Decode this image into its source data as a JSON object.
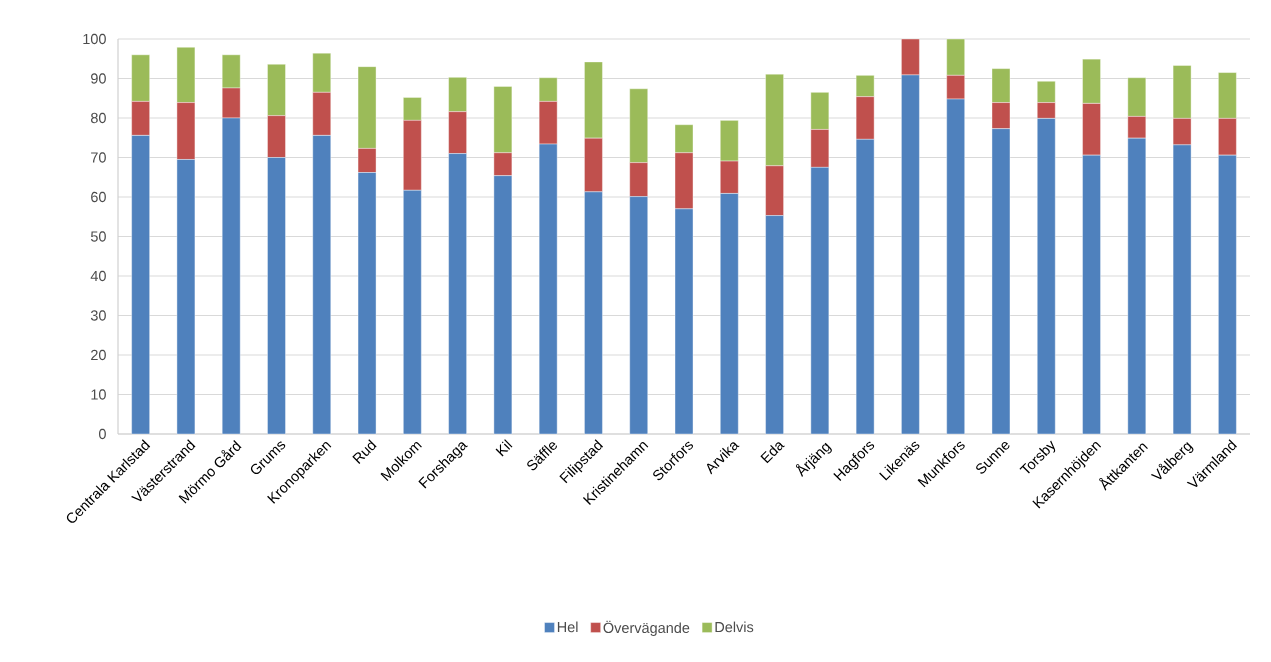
{
  "chart_data": {
    "type": "bar",
    "stacked": true,
    "grid": "y",
    "legend": "bottom",
    "categories": [
      "Centrala Karlstad",
      "Västerstrand",
      "Mörmo Gård",
      "Grums",
      "Kronoparken",
      "Rud",
      "Molkom",
      "Forshaga",
      "Kil",
      "Säffle",
      "Filipstad",
      "Kristinehamn",
      "Storfors",
      "Arvika",
      "Eda",
      "Årjäng",
      "Hagfors",
      "Likenäs",
      "Munkfors",
      "Sunne",
      "Torsby",
      "Kasernhöjden",
      "Åttkanten",
      "Vålberg",
      "Värmland"
    ],
    "series": [
      {
        "name": "Hel",
        "color": "#4f81bd",
        "values": [
          75.6,
          69.5,
          80.0,
          70.0,
          75.6,
          66.2,
          61.7,
          71.0,
          65.4,
          73.4,
          61.3,
          60.1,
          57.0,
          60.9,
          55.3,
          67.5,
          74.6,
          90.9,
          84.8,
          77.3,
          79.9,
          70.6,
          74.9,
          73.2,
          70.6
        ]
      },
      {
        "name": "Övervägande",
        "color": "#c0504d",
        "values": [
          8.6,
          14.4,
          7.6,
          10.6,
          10.9,
          6.1,
          17.7,
          10.6,
          5.8,
          10.8,
          13.6,
          8.6,
          14.2,
          8.2,
          12.6,
          9.6,
          10.8,
          9.1,
          6.0,
          6.6,
          4.0,
          13.1,
          5.5,
          6.7,
          9.3
        ]
      },
      {
        "name": "Delvis",
        "color": "#9bbb59",
        "values": [
          11.8,
          14.0,
          8.4,
          13.0,
          9.9,
          20.7,
          5.8,
          8.7,
          16.8,
          6.0,
          19.3,
          18.7,
          7.1,
          10.3,
          23.2,
          9.4,
          5.4,
          0,
          9.2,
          8.6,
          5.4,
          11.2,
          9.8,
          13.4,
          11.6
        ]
      }
    ],
    "ylim": [
      0,
      100
    ],
    "yticks": [
      0,
      10,
      20,
      30,
      40,
      50,
      60,
      70,
      80,
      90,
      100
    ]
  }
}
